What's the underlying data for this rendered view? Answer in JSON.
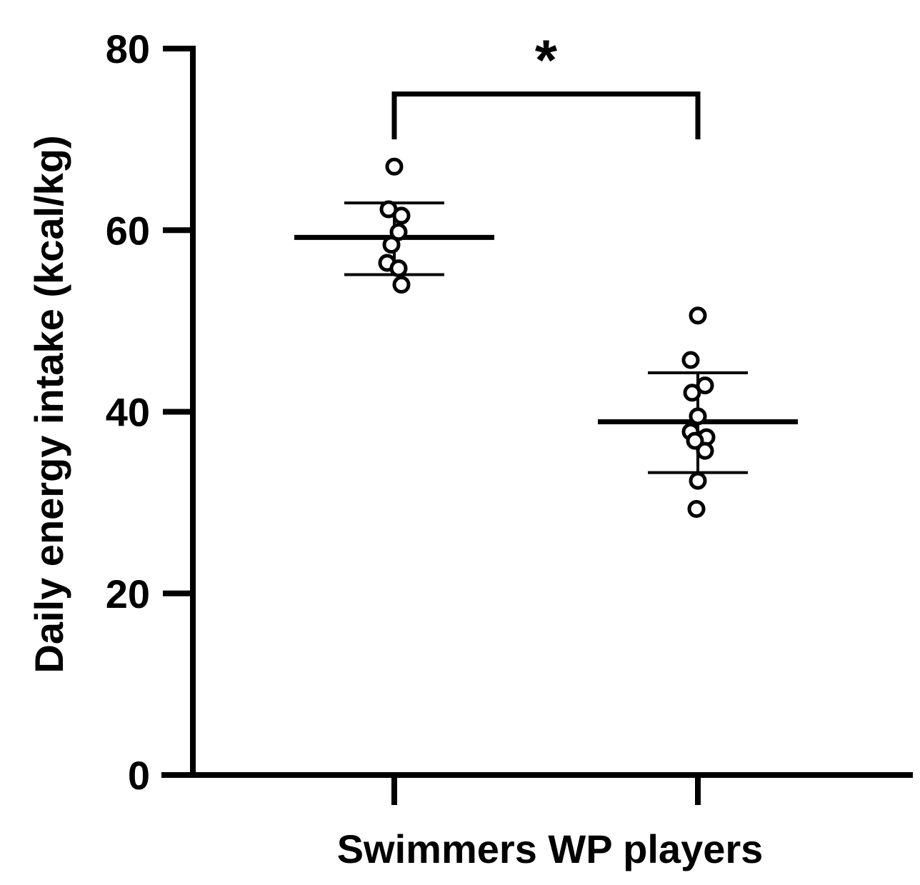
{
  "chart_data": {
    "type": "scatter",
    "ylabel": "Daily energy intake (kcal/kg)",
    "xlabel": "",
    "title": "",
    "ylim": [
      0,
      80
    ],
    "yticks": [
      0,
      20,
      40,
      60,
      80
    ],
    "grid": false,
    "categories": [
      "Swimmers",
      "WP players"
    ],
    "groups": [
      {
        "category": "Swimmers",
        "mean": 59.2,
        "sd_upper": 63.0,
        "sd_lower": 55.1,
        "points": [
          67.0,
          62.3,
          61.6,
          59.8,
          58.4,
          56.4,
          55.8,
          54.0
        ]
      },
      {
        "category": "WP players",
        "mean": 38.9,
        "sd_upper": 44.3,
        "sd_lower": 33.3,
        "points": [
          50.6,
          45.7,
          42.9,
          42.1,
          39.5,
          37.8,
          37.2,
          36.8,
          35.7,
          32.4,
          29.3
        ]
      }
    ],
    "annotations": [
      {
        "type": "significance-bracket",
        "between": [
          "Swimmers",
          "WP players"
        ],
        "label": "*",
        "y": 75
      }
    ]
  },
  "style": {
    "ink": "#000000",
    "background": "#ffffff"
  }
}
